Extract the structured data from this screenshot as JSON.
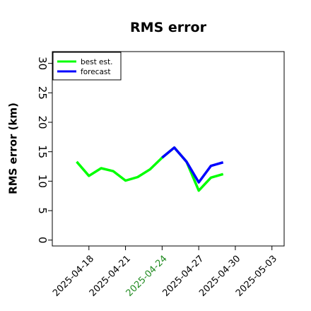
{
  "chart_data": {
    "type": "line",
    "title": "RMS error",
    "xlabel": "",
    "ylabel": "RMS error (km)",
    "ylim": [
      -1,
      32
    ],
    "xlim": [
      "2025-04-15",
      "2025-05-04"
    ],
    "yticks": [
      0,
      5,
      10,
      15,
      20,
      25,
      30
    ],
    "xticks": [
      {
        "date": "2025-04-18",
        "label": "2025-04-18",
        "color": "#000000"
      },
      {
        "date": "2025-04-21",
        "label": "2025-04-21",
        "color": "#000000"
      },
      {
        "date": "2025-04-24",
        "label": "2025-04-24",
        "color": "#228B22"
      },
      {
        "date": "2025-04-27",
        "label": "2025-04-27",
        "color": "#000000"
      },
      {
        "date": "2025-04-30",
        "label": "2025-04-30",
        "color": "#000000"
      },
      {
        "date": "2025-05-03",
        "label": "2025-05-03",
        "color": "#000000"
      }
    ],
    "grid": false,
    "legend_position": "top-left",
    "series": [
      {
        "name": "best est.",
        "color": "#00ff00",
        "points": [
          {
            "x": "2025-04-17",
            "y": 13.3
          },
          {
            "x": "2025-04-18",
            "y": 10.9
          },
          {
            "x": "2025-04-19",
            "y": 12.2
          },
          {
            "x": "2025-04-20",
            "y": 11.7
          },
          {
            "x": "2025-04-21",
            "y": 10.1
          },
          {
            "x": "2025-04-22",
            "y": 10.7
          },
          {
            "x": "2025-04-23",
            "y": 12.0
          },
          {
            "x": "2025-04-24",
            "y": 14.0
          },
          {
            "x": "2025-04-25",
            "y": 15.7
          },
          {
            "x": "2025-04-26",
            "y": 13.3
          },
          {
            "x": "2025-04-27",
            "y": 8.4
          },
          {
            "x": "2025-04-28",
            "y": 10.6
          },
          {
            "x": "2025-04-29",
            "y": 11.2
          }
        ]
      },
      {
        "name": "forecast",
        "color": "#0000ff",
        "points": [
          {
            "x": "2025-04-24",
            "y": 14.0
          },
          {
            "x": "2025-04-25",
            "y": 15.7
          },
          {
            "x": "2025-04-26",
            "y": 13.3
          },
          {
            "x": "2025-04-27",
            "y": 9.8
          },
          {
            "x": "2025-04-28",
            "y": 12.6
          },
          {
            "x": "2025-04-29",
            "y": 13.2
          }
        ]
      }
    ]
  }
}
